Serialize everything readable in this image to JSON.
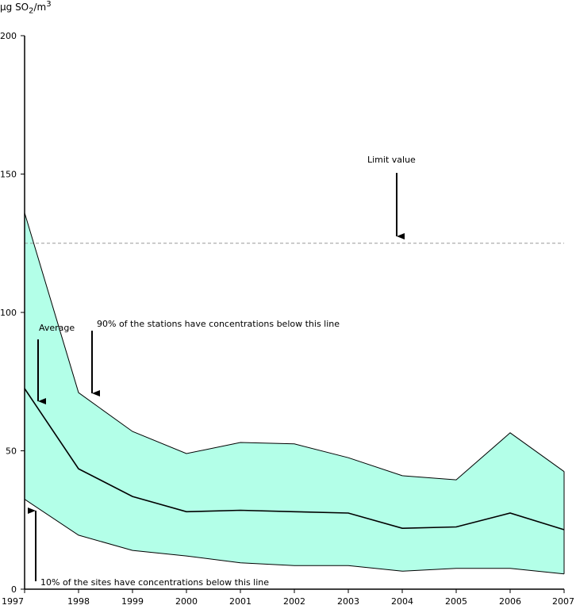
{
  "chart_data": {
    "type": "area",
    "ylabel": {
      "prefix": "µg SO",
      "sub": "2",
      "mid": "/m",
      "sup": "3"
    },
    "x": [
      "1997",
      "1998",
      "1999",
      "2000",
      "2001",
      "2002",
      "2003",
      "2004",
      "2005",
      "2006",
      "2007"
    ],
    "ylim": [
      0,
      200
    ],
    "yticks": [
      0,
      50,
      100,
      150,
      200
    ],
    "series": [
      {
        "role": "p90",
        "values": [
          136,
          71,
          57,
          49,
          53,
          52.5,
          47.5,
          41,
          39.5,
          56.5,
          42.5
        ]
      },
      {
        "role": "average",
        "values": [
          72.5,
          43.5,
          33.5,
          28,
          28.5,
          28,
          27.5,
          22,
          22.5,
          27.5,
          21.5
        ]
      },
      {
        "role": "p10",
        "values": [
          32.5,
          19.5,
          14,
          12,
          9.5,
          8.5,
          8.5,
          6.5,
          7.5,
          7.5,
          5.5
        ]
      }
    ],
    "limit_value": 125,
    "band_color": "#b3ffe8",
    "limit_color": "#999999",
    "annotations": {
      "limit": "Limit value",
      "average": "Average",
      "p90": "90% of the stations have concentrations below this line",
      "p10": "10% of the sites have concentrations below this line"
    }
  }
}
